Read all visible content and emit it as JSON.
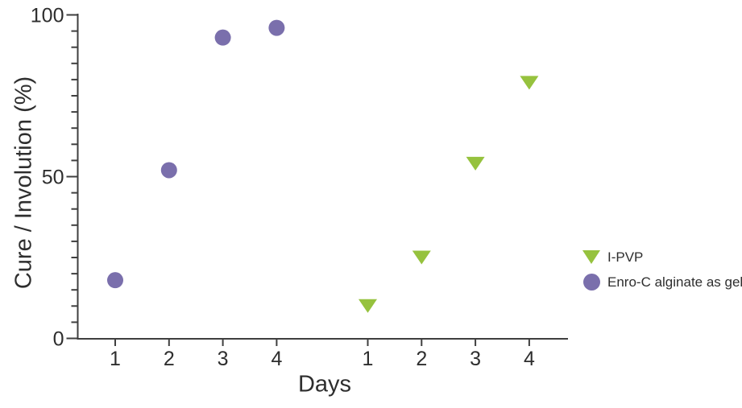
{
  "figure": {
    "background": "#FFFFFF"
  },
  "colors": {
    "series_green": "#96C23E",
    "series_purple": "#7A6FAC",
    "axis_line": "#3F3F3F",
    "text": "#2E2E2E"
  },
  "chart_data": {
    "type": "scatter",
    "title": "",
    "xlabel": "Days",
    "ylabel": "Cure / Involution (%)",
    "ylim": [
      0,
      100
    ],
    "yticks": [
      0,
      50,
      100
    ],
    "ytick_minor_step": 5,
    "grid": false,
    "legend_position": "right-center",
    "series": [
      {
        "name": "Enro-C alginate as gel",
        "marker": "circle",
        "color": "#7A6FAC",
        "group": 1,
        "categories": [
          "1",
          "2",
          "3",
          "4"
        ],
        "values": [
          18,
          52,
          93,
          96
        ]
      },
      {
        "name": "I-PVP",
        "marker": "triangle-down",
        "color": "#96C23E",
        "group": 2,
        "categories": [
          "1",
          "2",
          "3",
          "4"
        ],
        "values": [
          10,
          25,
          54,
          79
        ]
      }
    ],
    "legend": [
      {
        "label": "I-PVP",
        "marker": "triangle-down",
        "color": "#96C23E"
      },
      {
        "label": "Enro-C alginate as gel",
        "marker": "circle",
        "color": "#7A6FAC"
      }
    ]
  }
}
